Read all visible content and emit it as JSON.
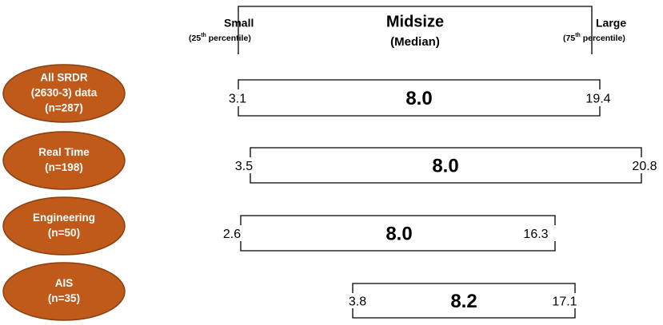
{
  "header": {
    "small": {
      "label": "Small",
      "note_pre": "(25",
      "note_sup": "th",
      "note_post": " percentile)"
    },
    "midsize": {
      "label": "Midsize",
      "note": "(Median)"
    },
    "large": {
      "label": "Large",
      "note_pre": "(75",
      "note_sup": "th",
      "note_post": " percentile)"
    }
  },
  "rows": [
    {
      "label": [
        "All SRDR",
        "(2630-3) data",
        "(n=287)"
      ],
      "low": "3.1",
      "median": "8.0",
      "high": "19.4"
    },
    {
      "label": [
        "Real Time",
        "(n=198)"
      ],
      "low": "3.5",
      "median": "8.0",
      "high": "20.8"
    },
    {
      "label": [
        "Engineering",
        "(n=50)"
      ],
      "low": "2.6",
      "median": "8.0",
      "high": "16.3"
    },
    {
      "label": [
        "AIS",
        "(n=35)"
      ],
      "low": "3.8",
      "median": "8.2",
      "high": "17.1"
    }
  ]
}
